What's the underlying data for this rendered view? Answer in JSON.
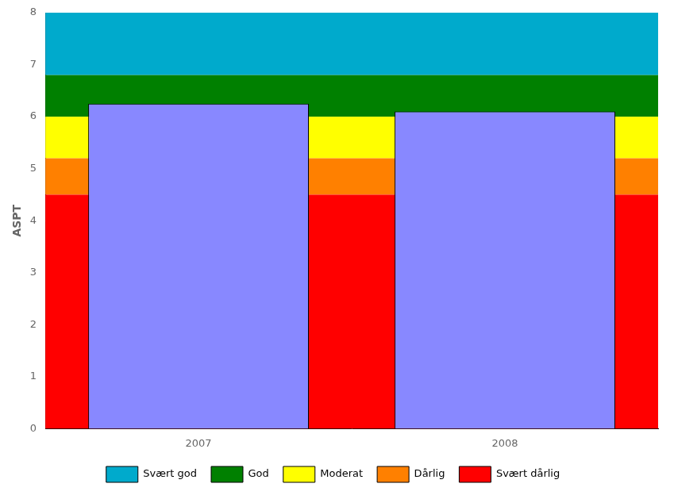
{
  "chart_data": {
    "type": "bar",
    "ylabel": "ASPT",
    "categories": [
      "2007",
      "2008"
    ],
    "values": [
      6.25,
      6.1
    ],
    "color": "#8888ff",
    "ylim": [
      0,
      8
    ],
    "yticks": [
      0,
      1,
      2,
      3,
      4,
      5,
      6,
      7,
      8
    ],
    "grid": false,
    "legend": "bottom",
    "bands": [
      {
        "name": "Svært god",
        "color": "#00aacc",
        "ymin": 6.8,
        "ymax": 8.0
      },
      {
        "name": "God",
        "color": "#008000",
        "ymin": 6.0,
        "ymax": 6.8
      },
      {
        "name": "Moderat",
        "color": "#ffff00",
        "ymin": 5.2,
        "ymax": 6.0
      },
      {
        "name": "Dårlig",
        "color": "#ff8000",
        "ymin": 4.5,
        "ymax": 5.2
      },
      {
        "name": "Svært dårlig",
        "color": "#ff0000",
        "ymin": 0,
        "ymax": 4.5
      }
    ]
  }
}
